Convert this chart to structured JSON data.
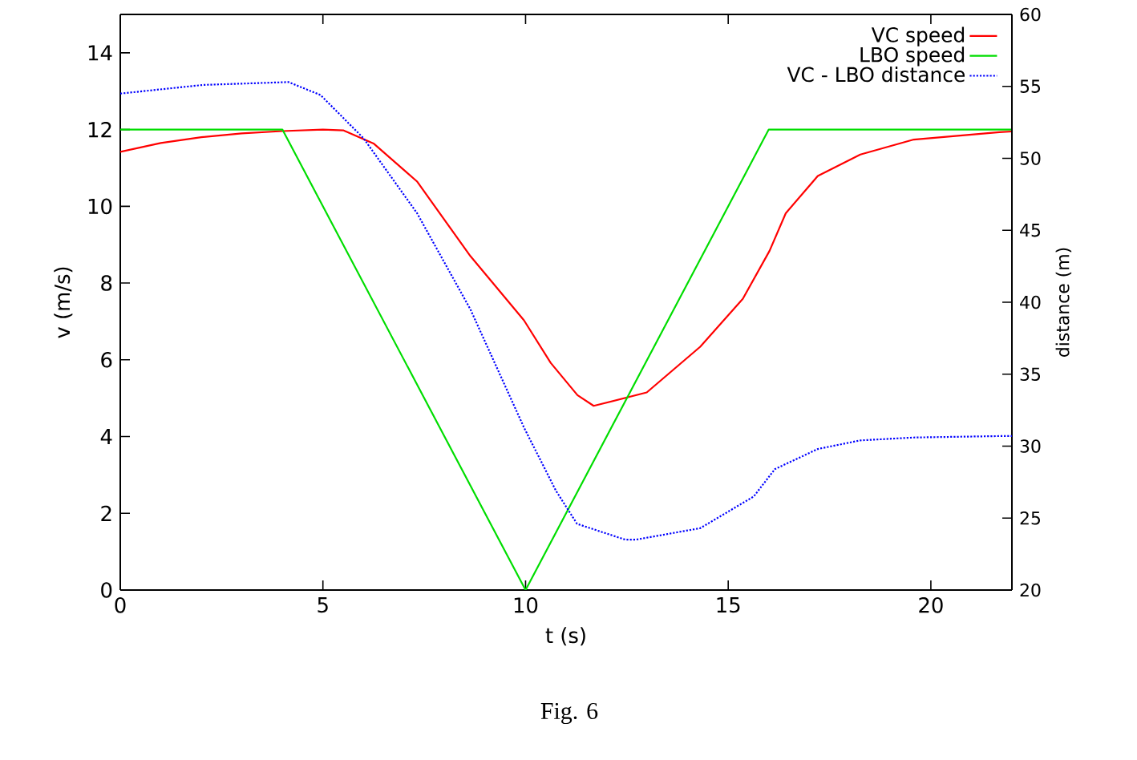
{
  "chart_data": {
    "type": "line",
    "xlabel": "t (s)",
    "ylabel": "v (m/s)",
    "y2label": "distance (m)",
    "xlim": [
      0,
      22
    ],
    "ylim": [
      0,
      15
    ],
    "y2lim": [
      20,
      60
    ],
    "xticks": [
      0,
      5,
      10,
      15,
      20
    ],
    "yticks": [
      0,
      2,
      4,
      6,
      8,
      10,
      12,
      14
    ],
    "y2ticks": [
      20,
      25,
      30,
      35,
      40,
      45,
      50,
      55,
      60
    ],
    "legend": "top right",
    "annotations": [
      "Fig. 6"
    ],
    "series": [
      {
        "name": "VC speed",
        "color": "#ff0000",
        "line_style": "solid",
        "x": [
          0,
          1,
          2,
          3,
          4,
          5,
          5.5,
          6.26,
          7.32,
          8.64,
          9.96,
          10.62,
          11.28,
          11.68,
          12.99,
          14.31,
          15.36,
          16.02,
          16.42,
          17.21,
          18.26,
          19.58,
          21.69,
          22
        ],
        "values": [
          11.42,
          11.65,
          11.8,
          11.9,
          11.96,
          12.0,
          11.98,
          11.63,
          10.65,
          8.7,
          7.03,
          5.92,
          5.08,
          4.8,
          5.15,
          6.34,
          7.59,
          8.84,
          9.82,
          10.79,
          11.35,
          11.74,
          11.93,
          11.95
        ]
      },
      {
        "name": "LBO speed",
        "color": "#00dd00",
        "line_style": "solid",
        "x": [
          0,
          4,
          10,
          16,
          22
        ],
        "values": [
          12,
          12,
          0,
          12,
          12
        ]
      },
      {
        "name": "VC - LBO distance",
        "color": "#0000ff",
        "line_style": "dotted",
        "axis": "y2",
        "x": [
          0,
          2.04,
          4.15,
          4.94,
          6.0,
          7.32,
          8.64,
          9.96,
          10.75,
          11.27,
          12.46,
          12.72,
          14.31,
          15.63,
          16.15,
          17.21,
          18.26,
          19.58,
          21.69,
          22
        ],
        "values": [
          54.5,
          55.1,
          55.3,
          54.4,
          51.4,
          46.2,
          39.5,
          31.3,
          26.9,
          24.6,
          23.5,
          23.5,
          24.3,
          26.5,
          28.4,
          29.8,
          30.4,
          30.6,
          30.7,
          30.7
        ]
      }
    ]
  }
}
